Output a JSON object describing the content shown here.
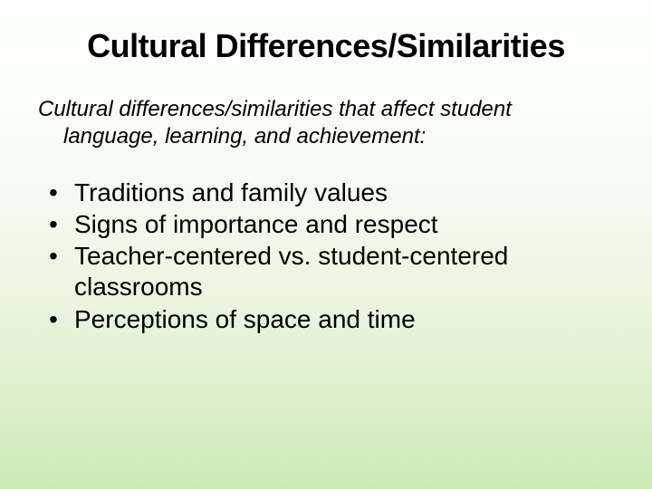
{
  "slide": {
    "title": "Cultural Differences/Similarities",
    "intro_line1": "Cultural differences/similarities that affect student",
    "intro_line2": "language, learning, and achievement:",
    "bullets": [
      "Traditions and family values",
      "Signs of importance and respect",
      "Teacher-centered vs. student-centered classrooms",
      "Perceptions of space and time"
    ],
    "background_gradient": [
      "#fdfefd",
      "#f8fcf5",
      "#e5f3d8",
      "#cce9b5"
    ],
    "text_color": "#000000",
    "title_fontsize": 36,
    "intro_fontsize": 24,
    "bullet_fontsize": 28,
    "font_family": "Arial"
  }
}
